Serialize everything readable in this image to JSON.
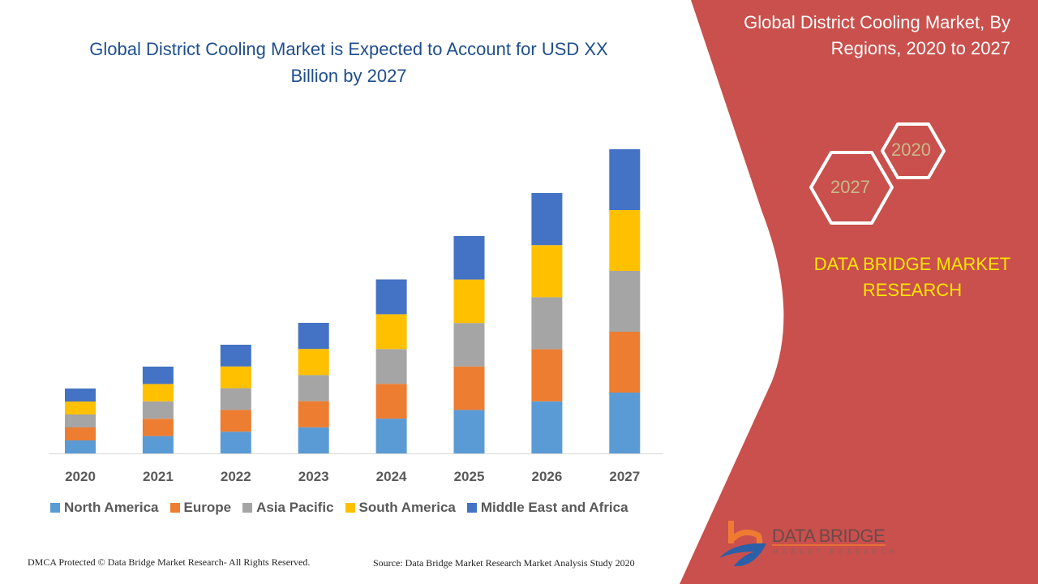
{
  "header": {
    "title": "Global District Cooling Market is Expected to Account for USD XX Billion by 2027"
  },
  "side_panel": {
    "title": "Global District Cooling Market, By Regions, 2020 to 2027",
    "hex_years": [
      "2020",
      "2027"
    ],
    "brand": "DATA BRIDGE MARKET RESEARCH",
    "panel_color": "#c9504c",
    "brand_color": "#ffe600"
  },
  "logo": {
    "name": "DATA BRIDGE",
    "tagline": "MARKET RESEARCH"
  },
  "footer": {
    "copyright": "DMCA Protected © Data Bridge Market Research- All Rights Reserved.",
    "source": "Source: Data Bridge Market Research Market Analysis Study 2020"
  },
  "chart_data": {
    "type": "bar",
    "stacked": true,
    "title": "Global District Cooling Market is Expected to Account for USD XX Billion by 2027",
    "xlabel": "",
    "ylabel": "",
    "categories": [
      "2020",
      "2021",
      "2022",
      "2023",
      "2024",
      "2025",
      "2026",
      "2027"
    ],
    "series": [
      {
        "name": "North America",
        "color": "#5b9bd5",
        "values": [
          16,
          21.4,
          26.8,
          32.2,
          42.9,
          53.6,
          64.2,
          75
        ]
      },
      {
        "name": "Europe",
        "color": "#ed7d31",
        "values": [
          16,
          21.4,
          26.8,
          32.2,
          42.9,
          53.6,
          64.2,
          75
        ]
      },
      {
        "name": "Asia Pacific",
        "color": "#a5a5a5",
        "values": [
          16,
          21.4,
          26.8,
          32.2,
          42.9,
          53.6,
          64.2,
          75
        ]
      },
      {
        "name": "South America",
        "color": "#ffc000",
        "values": [
          16,
          21.4,
          26.8,
          32.2,
          42.9,
          53.6,
          64.2,
          75
        ]
      },
      {
        "name": "Middle East and Africa",
        "color": "#4472c4",
        "values": [
          16,
          21.4,
          26.8,
          32.2,
          42.9,
          53.6,
          64.2,
          75
        ]
      }
    ],
    "y_axis_visible": false,
    "grid": false,
    "legend": "bottom"
  }
}
